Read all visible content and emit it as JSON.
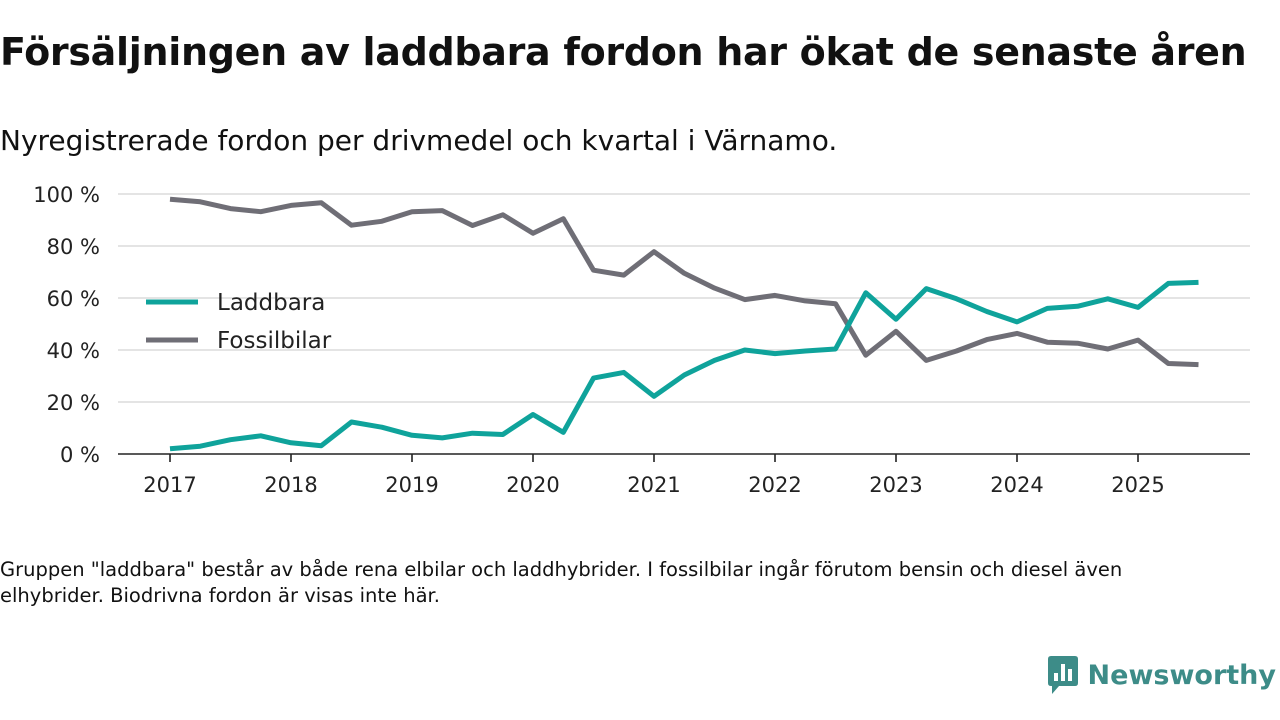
{
  "title": "Försäljningen av laddbara fordon har ökat de senaste åren",
  "subtitle": "Nyregistrerade fordon per drivmedel och kvartal i Värnamo.",
  "footnote": "Gruppen \"laddbara\" består av både rena elbilar och laddhybrider. I fossilbilar ingår förutom bensin och diesel även elhybrider. Biodrivna fordon är visas inte här.",
  "brand": {
    "name": "Newsworthy",
    "color": "#3d8c88"
  },
  "chart_data": {
    "type": "line",
    "title": "Försäljningen av laddbara fordon har ökat de senaste åren",
    "subtitle": "Nyregistrerade fordon per drivmedel och kvartal i Värnamo.",
    "xlabel": "",
    "ylabel": "",
    "ylim": [
      0,
      100
    ],
    "yticks": [
      0,
      20,
      40,
      60,
      80,
      100
    ],
    "ytick_labels": [
      "0 %",
      "20 %",
      "40 %",
      "60 %",
      "80 %",
      "100 %"
    ],
    "xticks": [
      2017,
      2018,
      2019,
      2020,
      2021,
      2022,
      2023,
      2024,
      2025
    ],
    "xtick_labels": [
      "2017",
      "2018",
      "2019",
      "2020",
      "2021",
      "2022",
      "2023",
      "2024",
      "2025"
    ],
    "x": [
      2017.0,
      2017.25,
      2017.5,
      2017.75,
      2018.0,
      2018.25,
      2018.5,
      2018.75,
      2019.0,
      2019.25,
      2019.5,
      2019.75,
      2020.0,
      2020.25,
      2020.5,
      2020.75,
      2021.0,
      2021.25,
      2021.5,
      2021.75,
      2022.0,
      2022.25,
      2022.5,
      2022.75,
      2023.0,
      2023.25,
      2023.5,
      2023.75,
      2024.0,
      2024.25,
      2024.5,
      2024.75,
      2025.0,
      2025.25,
      2025.5
    ],
    "grid": true,
    "legend_position": "middle-left",
    "series": [
      {
        "name": "Laddbara",
        "color": "#0fa39b",
        "values": [
          2,
          3,
          5.5,
          7,
          4.3,
          3.2,
          12.3,
          10.3,
          7.2,
          6.2,
          8,
          7.5,
          15.2,
          8.3,
          29.2,
          31.4,
          22.2,
          30.4,
          36,
          40,
          38.6,
          39.6,
          40.4,
          62,
          51.8,
          63.6,
          59.7,
          54.8,
          50.8,
          56,
          56.8,
          59.7,
          56.4,
          65.6,
          66
        ]
      },
      {
        "name": "Fossilbilar",
        "color": "#6f6e76",
        "values": [
          98,
          97,
          94.4,
          93.2,
          95.6,
          96.6,
          88,
          89.5,
          93.2,
          93.6,
          87.9,
          92,
          84.9,
          90.5,
          70.7,
          68.8,
          77.8,
          69.5,
          63.8,
          59.4,
          61,
          58.9,
          57.8,
          38,
          47.2,
          36,
          39.6,
          44,
          46.4,
          43,
          42.6,
          40.4,
          43.8,
          34.8,
          34.4
        ]
      }
    ]
  }
}
